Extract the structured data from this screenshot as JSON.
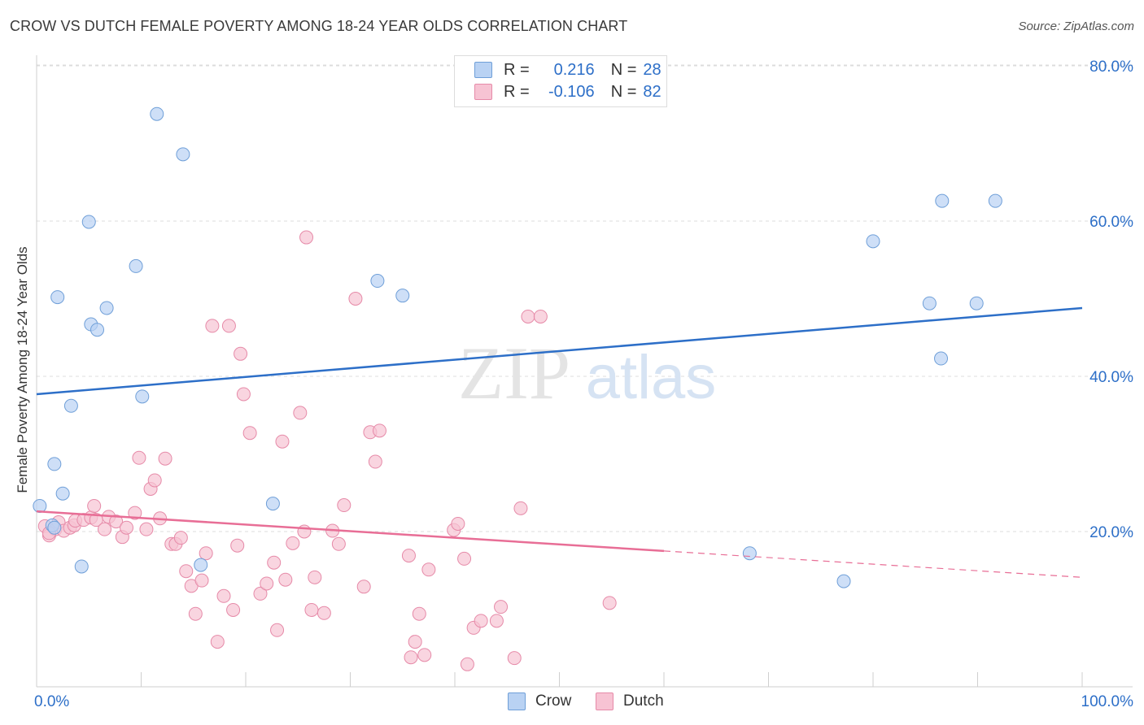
{
  "header": {
    "title": "CROW VS DUTCH FEMALE POVERTY AMONG 18-24 YEAR OLDS CORRELATION CHART",
    "source": "Source: ZipAtlas.com"
  },
  "watermark": {
    "zip": "ZIP",
    "atlas": "atlas"
  },
  "legend": {
    "r_label": "R =",
    "n_label": "N =",
    "series": [
      {
        "name": "Crow",
        "r": "0.216",
        "n": "28",
        "fill": "#b9d2f3",
        "stroke": "#6f9fd8"
      },
      {
        "name": "Dutch",
        "r": "-0.106",
        "n": "82",
        "fill": "#f7c3d3",
        "stroke": "#e68aa8"
      }
    ]
  },
  "colors": {
    "crow_line": "#2d6fc8",
    "dutch_line": "#e86e96",
    "grid": "#dcdcdc",
    "axis_text": "#2d6fc8"
  },
  "chart_data": {
    "type": "scatter",
    "title": "CROW VS DUTCH FEMALE POVERTY AMONG 18-24 YEAR OLDS CORRELATION CHART",
    "xlabel": "",
    "ylabel": "Female Poverty Among 18-24 Year Olds",
    "xlim": [
      0,
      100
    ],
    "ylim": [
      0,
      80
    ],
    "x_tick_labels": [
      "0.0%",
      "100.0%"
    ],
    "y_ticks": [
      20,
      40,
      60,
      80
    ],
    "y_tick_labels": [
      "20.0%",
      "40.0%",
      "60.0%",
      "80.0%"
    ],
    "series": [
      {
        "name": "Crow",
        "points": [
          [
            0.3,
            23.3
          ],
          [
            1.5,
            20.8
          ],
          [
            1.7,
            20.5
          ],
          [
            1.7,
            28.7
          ],
          [
            2.0,
            50.2
          ],
          [
            2.5,
            24.9
          ],
          [
            3.3,
            36.2
          ],
          [
            4.3,
            15.5
          ],
          [
            5.0,
            59.9
          ],
          [
            5.2,
            46.7
          ],
          [
            5.8,
            46.0
          ],
          [
            6.7,
            48.8
          ],
          [
            9.5,
            54.2
          ],
          [
            10.1,
            37.4
          ],
          [
            11.5,
            73.8
          ],
          [
            14.0,
            68.6
          ],
          [
            15.7,
            15.7
          ],
          [
            22.6,
            23.6
          ],
          [
            32.6,
            52.3
          ],
          [
            35.0,
            50.4
          ],
          [
            68.2,
            17.2
          ],
          [
            77.2,
            13.6
          ],
          [
            80.0,
            57.4
          ],
          [
            85.4,
            49.4
          ],
          [
            86.5,
            42.3
          ],
          [
            86.6,
            62.6
          ],
          [
            89.9,
            49.4
          ],
          [
            91.7,
            62.6
          ]
        ],
        "trend": {
          "x": [
            0,
            100
          ],
          "y": [
            37.7,
            48.8
          ],
          "style": "solid"
        }
      },
      {
        "name": "Dutch",
        "points": [
          [
            0.8,
            20.7
          ],
          [
            1.2,
            19.5
          ],
          [
            1.8,
            20.3
          ],
          [
            2.1,
            21.2
          ],
          [
            2.6,
            20.1
          ],
          [
            3.2,
            20.5
          ],
          [
            3.6,
            20.8
          ],
          [
            3.7,
            21.4
          ],
          [
            4.5,
            21.5
          ],
          [
            5.2,
            21.8
          ],
          [
            5.5,
            23.3
          ],
          [
            5.7,
            21.5
          ],
          [
            6.5,
            20.3
          ],
          [
            6.9,
            21.9
          ],
          [
            7.6,
            21.3
          ],
          [
            8.2,
            19.3
          ],
          [
            8.6,
            20.5
          ],
          [
            9.4,
            22.4
          ],
          [
            9.8,
            29.5
          ],
          [
            10.5,
            20.3
          ],
          [
            10.9,
            25.5
          ],
          [
            11.3,
            26.6
          ],
          [
            11.8,
            21.7
          ],
          [
            12.3,
            29.4
          ],
          [
            12.9,
            18.4
          ],
          [
            13.3,
            18.4
          ],
          [
            13.8,
            19.2
          ],
          [
            14.3,
            14.9
          ],
          [
            14.8,
            13.0
          ],
          [
            15.2,
            9.4
          ],
          [
            15.8,
            13.7
          ],
          [
            16.2,
            17.2
          ],
          [
            16.8,
            46.5
          ],
          [
            17.3,
            5.8
          ],
          [
            17.9,
            11.7
          ],
          [
            18.4,
            46.5
          ],
          [
            18.8,
            9.9
          ],
          [
            19.2,
            18.2
          ],
          [
            19.5,
            42.9
          ],
          [
            19.8,
            37.7
          ],
          [
            20.4,
            32.7
          ],
          [
            21.4,
            12.0
          ],
          [
            22.0,
            13.3
          ],
          [
            22.7,
            16.0
          ],
          [
            23.0,
            7.3
          ],
          [
            23.5,
            31.6
          ],
          [
            23.8,
            13.8
          ],
          [
            24.5,
            18.5
          ],
          [
            25.2,
            35.3
          ],
          [
            25.6,
            20.0
          ],
          [
            25.8,
            57.9
          ],
          [
            26.3,
            9.9
          ],
          [
            26.6,
            14.1
          ],
          [
            27.5,
            9.5
          ],
          [
            28.3,
            20.1
          ],
          [
            28.9,
            18.4
          ],
          [
            29.4,
            23.4
          ],
          [
            30.5,
            50.0
          ],
          [
            31.3,
            12.9
          ],
          [
            31.9,
            32.8
          ],
          [
            32.4,
            29.0
          ],
          [
            32.8,
            33.0
          ],
          [
            35.6,
            16.9
          ],
          [
            35.8,
            3.8
          ],
          [
            36.2,
            5.8
          ],
          [
            36.6,
            9.4
          ],
          [
            37.1,
            4.1
          ],
          [
            37.5,
            15.1
          ],
          [
            39.9,
            20.2
          ],
          [
            40.3,
            21.0
          ],
          [
            40.9,
            16.5
          ],
          [
            41.2,
            2.9
          ],
          [
            41.8,
            7.6
          ],
          [
            42.5,
            8.5
          ],
          [
            44.0,
            8.5
          ],
          [
            44.4,
            10.3
          ],
          [
            45.7,
            3.7
          ],
          [
            46.3,
            23.0
          ],
          [
            47.0,
            47.7
          ],
          [
            48.2,
            47.7
          ],
          [
            54.8,
            10.8
          ],
          [
            1.2,
            19.8
          ]
        ],
        "trend": {
          "x": [
            0,
            60
          ],
          "y": [
            22.6,
            17.5
          ],
          "style": "solid",
          "dashed_extension": {
            "x": [
              60,
              100
            ],
            "y": [
              17.5,
              14.1
            ]
          }
        }
      }
    ]
  }
}
